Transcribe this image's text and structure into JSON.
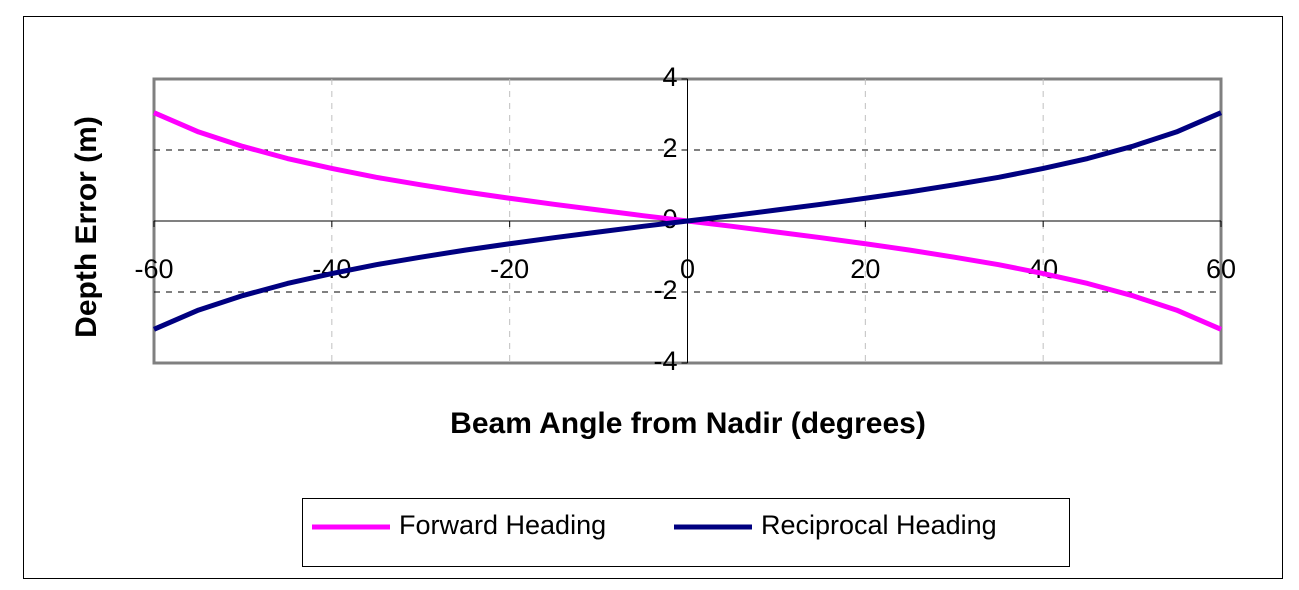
{
  "chart_data": {
    "type": "line",
    "x_label": "Beam Angle from Nadir (degrees)",
    "y_label": "Depth Error (m)",
    "x": [
      -60,
      -55,
      -50,
      -45,
      -40,
      -35,
      -30,
      -25,
      -20,
      -15,
      -10,
      -5,
      0,
      5,
      10,
      15,
      20,
      25,
      30,
      35,
      40,
      45,
      50,
      55,
      60
    ],
    "series": [
      {
        "name": "Forward Heading",
        "color": "#ff00ff",
        "values": [
          3.05,
          2.51,
          2.1,
          1.76,
          1.48,
          1.23,
          1.02,
          0.82,
          0.64,
          0.47,
          0.31,
          0.15,
          0,
          -0.15,
          -0.31,
          -0.47,
          -0.64,
          -0.82,
          -1.02,
          -1.23,
          -1.48,
          -1.76,
          -2.1,
          -2.51,
          -3.05
        ]
      },
      {
        "name": "Reciprocal Heading",
        "color": "#000080",
        "values": [
          -3.05,
          -2.51,
          -2.1,
          -1.76,
          -1.48,
          -1.23,
          -1.02,
          -0.82,
          -0.64,
          -0.47,
          -0.31,
          -0.15,
          0,
          0.15,
          0.31,
          0.47,
          0.64,
          0.82,
          1.02,
          1.23,
          1.48,
          1.76,
          2.1,
          2.51,
          3.05
        ]
      }
    ],
    "xlim": [
      -60,
      60
    ],
    "xticks": [
      -60,
      -40,
      -20,
      0,
      20,
      40,
      60
    ],
    "ylim": [
      -4,
      4
    ],
    "yticks": [
      -4,
      -2,
      0,
      2,
      4
    ],
    "grid": true,
    "legend": "bottom"
  }
}
